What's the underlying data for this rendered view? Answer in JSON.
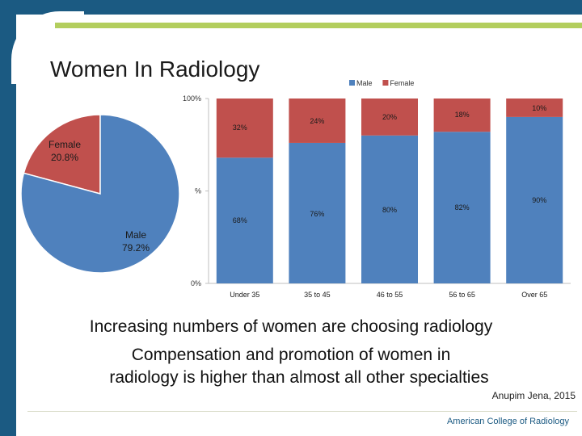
{
  "slide": {
    "title": "Women In Radiology",
    "caption_line1": "Increasing numbers of women are choosing radiology",
    "caption_line2": "Compensation and promotion of women in",
    "caption_line3": "radiology is higher than almost all other specialties",
    "citation": "Anupim Jena, 2015",
    "brand": "American College of Radiology"
  },
  "chart_data": [
    {
      "type": "pie",
      "slices": [
        {
          "name": "Male",
          "label": "Male",
          "value_label": "79.2%",
          "value": 79.2,
          "color": "#4f81bd"
        },
        {
          "name": "Female",
          "label": "Female",
          "value_label": "20.8%",
          "value": 20.8,
          "color": "#c0504d"
        }
      ]
    },
    {
      "type": "bar",
      "stacked": true,
      "categories": [
        "Under 35",
        "35 to 45",
        "46 to 55",
        "56 to 65",
        "Over 65"
      ],
      "series": [
        {
          "name": "Male",
          "color": "#4f81bd",
          "values": [
            68,
            76,
            80,
            82,
            90
          ],
          "labels": [
            "68%",
            "76%",
            "80%",
            "82%",
            "90%"
          ]
        },
        {
          "name": "Female",
          "color": "#c0504d",
          "values": [
            32,
            24,
            20,
            18,
            10
          ],
          "labels": [
            "32%",
            "24%",
            "20%",
            "18%",
            "10%"
          ]
        }
      ],
      "ylim": [
        0,
        100
      ],
      "y_ticks": [
        {
          "value": 0,
          "label": "0%"
        },
        {
          "value": 50,
          "label": "%"
        },
        {
          "value": 100,
          "label": "100%"
        }
      ],
      "legend_position": "top"
    }
  ]
}
